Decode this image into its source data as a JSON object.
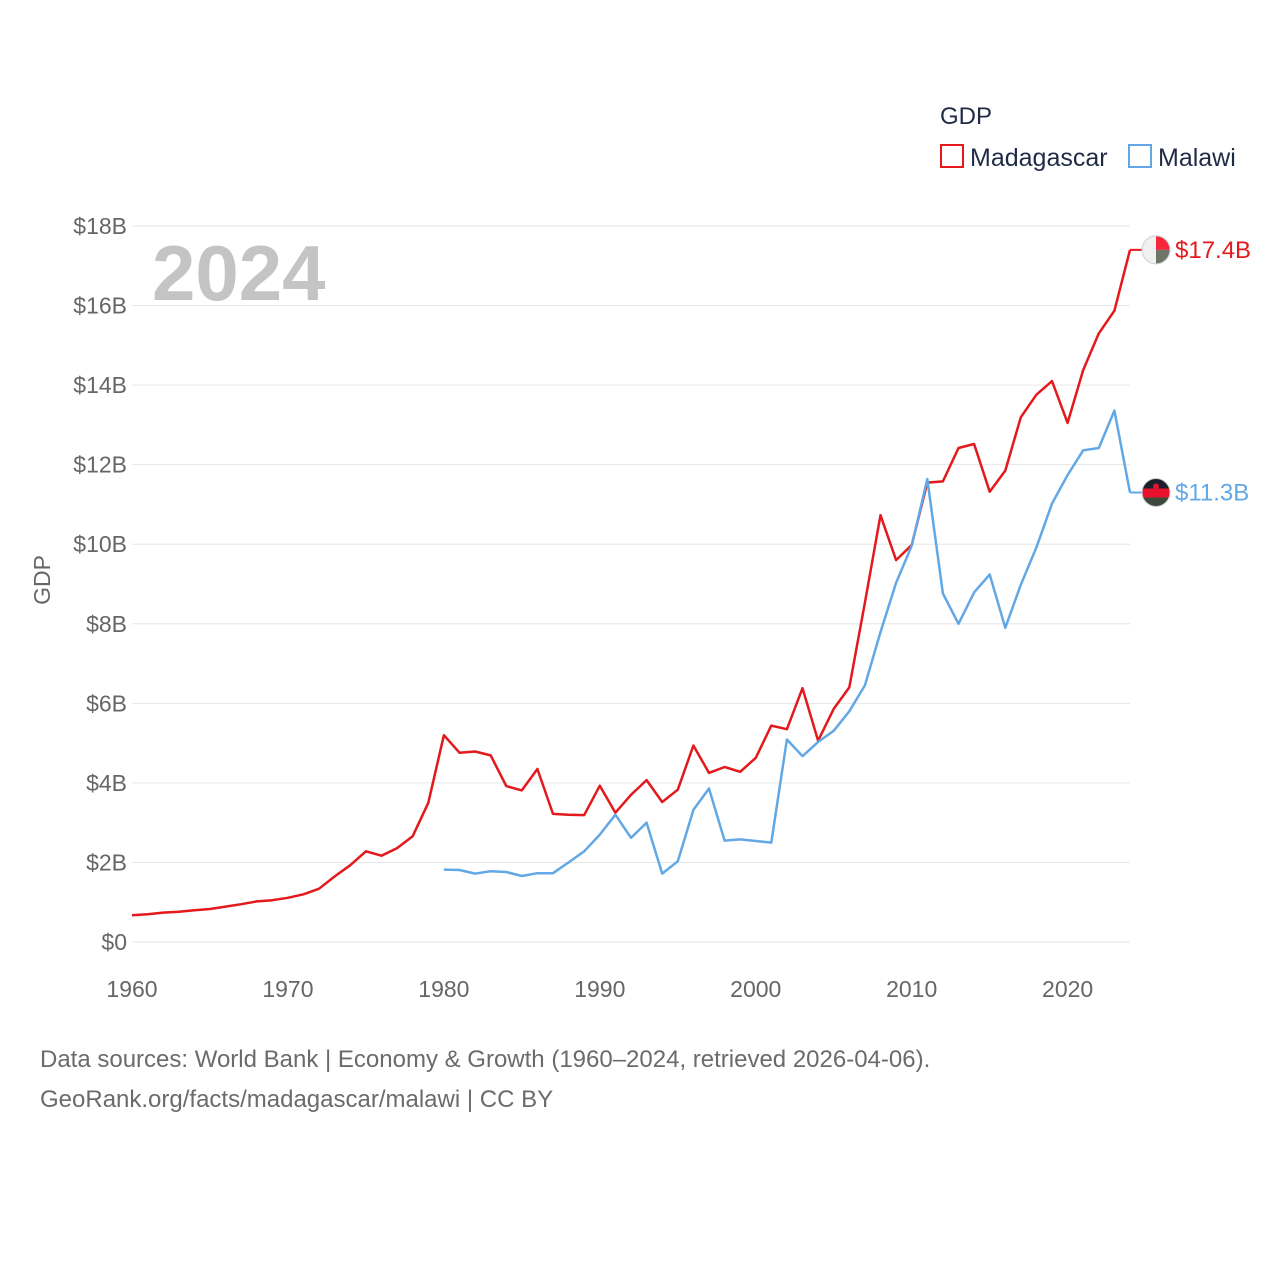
{
  "chart_data": {
    "type": "line",
    "title": "GDP",
    "xlabel": "",
    "ylabel": "GDP",
    "year_label": "2024",
    "xlim": [
      1960,
      2024
    ],
    "ylim": [
      0,
      18
    ],
    "x_ticks": [
      1960,
      1970,
      1980,
      1990,
      2000,
      2010,
      2020
    ],
    "x_tick_labels": [
      "1960",
      "1970",
      "1980",
      "1990",
      "2000",
      "2010",
      "2020"
    ],
    "y_ticks": [
      0,
      2,
      4,
      6,
      8,
      10,
      12,
      14,
      16,
      18
    ],
    "y_tick_labels": [
      "$0",
      "$2B",
      "$4B",
      "$6B",
      "$8B",
      "$10B",
      "$12B",
      "$14B",
      "$16B",
      "$18B"
    ],
    "legend_title": "GDP",
    "legend_position": "top-right",
    "grid": true,
    "series": [
      {
        "name": "Madagascar",
        "color": "#e3191c",
        "end_label": "$17.4B",
        "x": [
          1960,
          1961,
          1962,
          1963,
          1964,
          1965,
          1966,
          1967,
          1968,
          1969,
          1970,
          1971,
          1972,
          1973,
          1974,
          1975,
          1976,
          1977,
          1978,
          1979,
          1980,
          1981,
          1982,
          1983,
          1984,
          1985,
          1986,
          1987,
          1988,
          1989,
          1990,
          1991,
          1992,
          1993,
          1994,
          1995,
          1996,
          1997,
          1998,
          1999,
          2000,
          2001,
          2002,
          2003,
          2004,
          2005,
          2006,
          2007,
          2008,
          2009,
          2010,
          2011,
          2012,
          2013,
          2014,
          2015,
          2016,
          2017,
          2018,
          2019,
          2020,
          2021,
          2022,
          2023,
          2024
        ],
        "values": [
          0.67,
          0.7,
          0.74,
          0.76,
          0.8,
          0.83,
          0.89,
          0.95,
          1.02,
          1.05,
          1.11,
          1.2,
          1.34,
          1.65,
          1.93,
          2.28,
          2.17,
          2.36,
          2.66,
          3.5,
          5.2,
          4.76,
          4.79,
          4.69,
          3.92,
          3.81,
          4.35,
          3.22,
          3.2,
          3.19,
          3.93,
          3.25,
          3.7,
          4.07,
          3.52,
          3.83,
          4.94,
          4.25,
          4.4,
          4.28,
          4.63,
          5.44,
          5.35,
          6.38,
          5.06,
          5.86,
          6.4,
          8.53,
          10.73,
          9.6,
          9.98,
          11.55,
          11.58,
          12.42,
          12.52,
          11.32,
          11.85,
          13.19,
          13.76,
          14.1,
          13.05,
          14.38,
          15.3,
          15.87,
          17.4
        ]
      },
      {
        "name": "Malawi",
        "color": "#62a8e5",
        "end_label": "$11.3B",
        "x": [
          1980,
          1981,
          1982,
          1983,
          1984,
          1985,
          1986,
          1987,
          1988,
          1989,
          1990,
          1991,
          1992,
          1993,
          1994,
          1995,
          1996,
          1997,
          1998,
          1999,
          2000,
          2001,
          2002,
          2003,
          2004,
          2005,
          2006,
          2007,
          2008,
          2009,
          2010,
          2011,
          2012,
          2013,
          2014,
          2015,
          2016,
          2017,
          2018,
          2019,
          2020,
          2021,
          2022,
          2023,
          2024
        ],
        "values": [
          1.82,
          1.81,
          1.72,
          1.78,
          1.76,
          1.66,
          1.73,
          1.73,
          2.0,
          2.28,
          2.7,
          3.2,
          2.62,
          3.0,
          1.72,
          2.03,
          3.32,
          3.86,
          2.55,
          2.58,
          2.54,
          2.5,
          5.09,
          4.67,
          5.03,
          5.31,
          5.8,
          6.45,
          7.79,
          9.03,
          9.96,
          11.64,
          8.76,
          8.0,
          8.79,
          9.24,
          7.9,
          8.98,
          9.92,
          11.02,
          11.74,
          12.36,
          12.42,
          13.36,
          11.3
        ]
      }
    ]
  },
  "footer": {
    "line1": "Data sources: World Bank | Economy & Growth (1960–2024, retrieved 2026-04-06).",
    "line2": "GeoRank.org/facts/madagascar/malawi | CC BY"
  }
}
